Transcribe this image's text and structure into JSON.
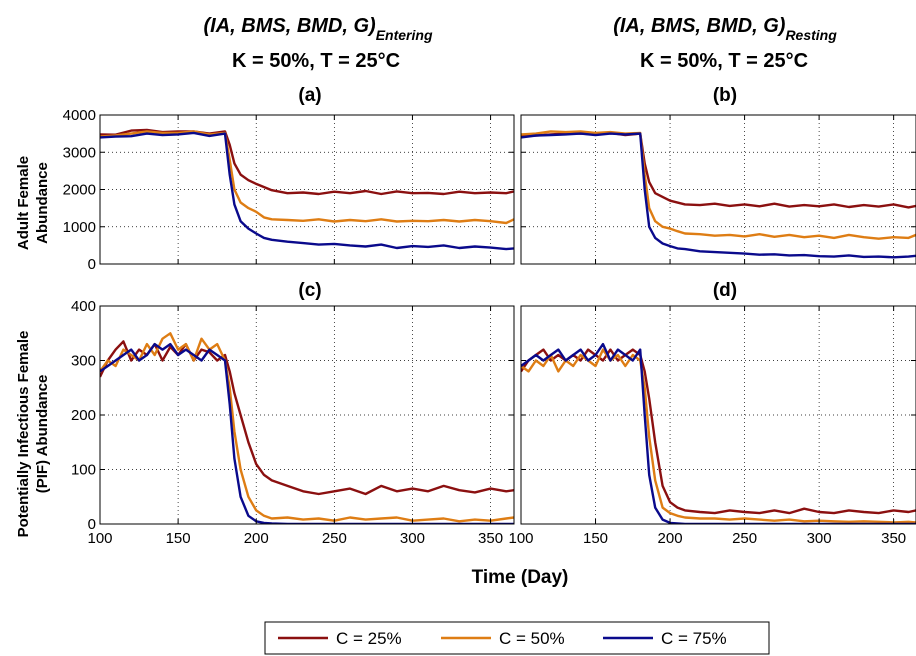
{
  "headings": {
    "left": {
      "main": "(IA, BMS, BMD, G)",
      "sub": "Entering",
      "cond": "K = 50%, T = 25°C"
    },
    "right": {
      "main": "(IA, BMS, BMD, G)",
      "sub": "Resting",
      "cond": "K = 50%, T = 25°C"
    }
  },
  "xlabel": "Time (Day)",
  "ylabel_top": [
    "Adult Female",
    "Abundance"
  ],
  "ylabel_bottom": [
    "Potentially Infectious Female",
    "(PIF) Abundance"
  ],
  "colors": {
    "C25": "#8b1010",
    "C50": "#de7d14",
    "C75": "#0a0a8c"
  },
  "legend": [
    "C = 25%",
    "C = 50%",
    "C = 75%"
  ],
  "chart_data": [
    {
      "type": "line",
      "panel_label": "(a)",
      "xlim": [
        100,
        365
      ],
      "ylim": [
        0,
        4000
      ],
      "xticks": [
        100,
        150,
        200,
        250,
        300,
        350
      ],
      "yticks": [
        0,
        1000,
        2000,
        3000,
        4000
      ],
      "grid": true,
      "series": [
        {
          "name": "C = 25%",
          "x": [
            100,
            110,
            120,
            130,
            140,
            150,
            160,
            170,
            180,
            183,
            186,
            190,
            195,
            200,
            210,
            220,
            230,
            240,
            250,
            260,
            270,
            280,
            290,
            300,
            310,
            320,
            330,
            340,
            350,
            360,
            365
          ],
          "y": [
            3480,
            3470,
            3580,
            3600,
            3540,
            3560,
            3560,
            3500,
            3560,
            3200,
            2700,
            2400,
            2250,
            2150,
            1980,
            1900,
            1920,
            1880,
            1940,
            1900,
            1960,
            1880,
            1950,
            1900,
            1910,
            1880,
            1940,
            1900,
            1920,
            1900,
            1950
          ]
        },
        {
          "name": "C = 50%",
          "x": [
            100,
            110,
            120,
            130,
            140,
            150,
            160,
            170,
            180,
            183,
            186,
            190,
            195,
            200,
            205,
            210,
            220,
            230,
            240,
            250,
            260,
            270,
            280,
            290,
            300,
            310,
            320,
            330,
            340,
            350,
            360,
            365
          ],
          "y": [
            3420,
            3450,
            3500,
            3560,
            3520,
            3520,
            3560,
            3480,
            3520,
            2800,
            2000,
            1650,
            1500,
            1400,
            1250,
            1200,
            1180,
            1160,
            1200,
            1140,
            1180,
            1150,
            1200,
            1140,
            1160,
            1150,
            1180,
            1140,
            1180,
            1150,
            1100,
            1200
          ]
        },
        {
          "name": "C = 75%",
          "x": [
            100,
            110,
            120,
            130,
            140,
            150,
            160,
            170,
            180,
            183,
            186,
            190,
            195,
            200,
            205,
            210,
            220,
            230,
            240,
            250,
            260,
            270,
            280,
            290,
            300,
            310,
            320,
            330,
            340,
            350,
            360,
            365
          ],
          "y": [
            3400,
            3420,
            3430,
            3500,
            3460,
            3480,
            3520,
            3440,
            3500,
            2400,
            1600,
            1150,
            950,
            820,
            700,
            650,
            600,
            560,
            520,
            540,
            500,
            470,
            520,
            430,
            480,
            460,
            500,
            430,
            470,
            440,
            400,
            420
          ]
        }
      ]
    },
    {
      "type": "line",
      "panel_label": "(b)",
      "xlim": [
        100,
        365
      ],
      "ylim": [
        0,
        4000
      ],
      "xticks": [
        100,
        150,
        200,
        250,
        300,
        350
      ],
      "yticks": [
        0,
        1000,
        2000,
        3000,
        4000
      ],
      "grid": true,
      "series": [
        {
          "name": "C = 25%",
          "x": [
            100,
            110,
            120,
            130,
            140,
            150,
            160,
            170,
            180,
            183,
            186,
            190,
            195,
            200,
            210,
            220,
            230,
            240,
            250,
            260,
            270,
            280,
            290,
            300,
            310,
            320,
            330,
            340,
            350,
            360,
            365
          ],
          "y": [
            3420,
            3450,
            3480,
            3500,
            3500,
            3480,
            3520,
            3460,
            3500,
            2700,
            2200,
            1900,
            1800,
            1700,
            1600,
            1580,
            1620,
            1560,
            1600,
            1550,
            1620,
            1540,
            1580,
            1550,
            1600,
            1530,
            1580,
            1540,
            1600,
            1520,
            1560
          ]
        },
        {
          "name": "C = 50%",
          "x": [
            100,
            110,
            120,
            130,
            140,
            150,
            160,
            170,
            180,
            183,
            186,
            190,
            195,
            200,
            205,
            210,
            220,
            230,
            240,
            250,
            260,
            270,
            280,
            290,
            300,
            310,
            320,
            330,
            340,
            350,
            360,
            365
          ],
          "y": [
            3480,
            3500,
            3560,
            3540,
            3560,
            3520,
            3540,
            3500,
            3520,
            2400,
            1500,
            1150,
            1000,
            950,
            880,
            820,
            800,
            760,
            780,
            740,
            800,
            730,
            780,
            720,
            760,
            700,
            780,
            720,
            680,
            720,
            700,
            780
          ]
        },
        {
          "name": "C = 75%",
          "x": [
            100,
            110,
            120,
            130,
            140,
            150,
            160,
            170,
            180,
            183,
            186,
            190,
            195,
            200,
            205,
            210,
            220,
            230,
            240,
            250,
            260,
            270,
            280,
            290,
            300,
            310,
            320,
            330,
            340,
            350,
            360,
            365
          ],
          "y": [
            3400,
            3450,
            3460,
            3480,
            3500,
            3460,
            3500,
            3480,
            3500,
            2000,
            1000,
            700,
            550,
            480,
            420,
            400,
            340,
            320,
            300,
            280,
            250,
            260,
            230,
            240,
            210,
            200,
            230,
            190,
            200,
            180,
            200,
            220
          ]
        }
      ]
    },
    {
      "type": "line",
      "panel_label": "(c)",
      "xlim": [
        100,
        365
      ],
      "ylim": [
        0,
        400
      ],
      "xticks": [
        100,
        150,
        200,
        250,
        300,
        350
      ],
      "yticks": [
        0,
        100,
        200,
        300,
        400
      ],
      "grid": true,
      "series": [
        {
          "name": "C = 25%",
          "x": [
            100,
            105,
            110,
            115,
            120,
            125,
            130,
            135,
            140,
            145,
            150,
            155,
            160,
            165,
            170,
            175,
            180,
            183,
            186,
            190,
            195,
            200,
            205,
            210,
            220,
            230,
            240,
            250,
            260,
            270,
            280,
            290,
            300,
            310,
            320,
            330,
            340,
            350,
            360,
            365
          ],
          "y": [
            270,
            300,
            320,
            335,
            300,
            320,
            310,
            330,
            300,
            325,
            310,
            330,
            300,
            320,
            315,
            300,
            310,
            280,
            240,
            200,
            150,
            110,
            90,
            80,
            70,
            60,
            55,
            60,
            65,
            55,
            70,
            60,
            65,
            60,
            70,
            62,
            58,
            65,
            60,
            62
          ]
        },
        {
          "name": "C = 50%",
          "x": [
            100,
            105,
            110,
            115,
            120,
            125,
            130,
            135,
            140,
            145,
            150,
            155,
            160,
            165,
            170,
            175,
            180,
            183,
            186,
            190,
            195,
            200,
            205,
            210,
            220,
            230,
            240,
            250,
            260,
            270,
            280,
            290,
            300,
            310,
            320,
            330,
            340,
            350,
            360,
            365
          ],
          "y": [
            280,
            300,
            290,
            320,
            310,
            300,
            330,
            310,
            340,
            350,
            320,
            330,
            300,
            340,
            320,
            330,
            300,
            250,
            170,
            100,
            50,
            25,
            15,
            10,
            12,
            8,
            10,
            6,
            12,
            8,
            10,
            12,
            6,
            8,
            10,
            5,
            8,
            6,
            10,
            12
          ]
        },
        {
          "name": "C = 75%",
          "x": [
            100,
            105,
            110,
            115,
            120,
            125,
            130,
            135,
            140,
            145,
            150,
            155,
            160,
            165,
            170,
            175,
            180,
            183,
            186,
            190,
            195,
            200,
            205,
            210,
            220,
            230,
            240,
            250,
            260,
            270,
            280,
            290,
            300,
            310,
            320,
            330,
            340,
            350,
            360,
            365
          ],
          "y": [
            280,
            290,
            300,
            310,
            320,
            300,
            310,
            330,
            320,
            330,
            310,
            320,
            310,
            300,
            320,
            310,
            300,
            220,
            120,
            50,
            15,
            5,
            2,
            1,
            0,
            0,
            0,
            0,
            0,
            0,
            0,
            0,
            0,
            0,
            0,
            0,
            0,
            0,
            0,
            0
          ]
        }
      ]
    },
    {
      "type": "line",
      "panel_label": "(d)",
      "xlim": [
        100,
        365
      ],
      "ylim": [
        0,
        400
      ],
      "xticks": [
        100,
        150,
        200,
        250,
        300,
        350
      ],
      "yticks": [
        0,
        100,
        200,
        300,
        400
      ],
      "grid": true,
      "series": [
        {
          "name": "C = 25%",
          "x": [
            100,
            105,
            110,
            115,
            120,
            125,
            130,
            135,
            140,
            145,
            150,
            155,
            160,
            165,
            170,
            175,
            180,
            183,
            186,
            190,
            195,
            200,
            205,
            210,
            220,
            230,
            240,
            250,
            260,
            270,
            280,
            290,
            300,
            310,
            320,
            330,
            340,
            350,
            360,
            365
          ],
          "y": [
            280,
            300,
            310,
            320,
            300,
            310,
            300,
            310,
            300,
            320,
            310,
            300,
            320,
            300,
            310,
            320,
            310,
            280,
            230,
            150,
            70,
            40,
            30,
            25,
            22,
            20,
            25,
            22,
            20,
            25,
            20,
            28,
            22,
            20,
            25,
            22,
            20,
            25,
            22,
            25
          ]
        },
        {
          "name": "C = 50%",
          "x": [
            100,
            105,
            110,
            115,
            120,
            125,
            130,
            135,
            140,
            145,
            150,
            155,
            160,
            165,
            170,
            175,
            180,
            183,
            186,
            190,
            195,
            200,
            205,
            210,
            220,
            230,
            240,
            250,
            260,
            270,
            280,
            290,
            300,
            310,
            320,
            330,
            340,
            350,
            360,
            365
          ],
          "y": [
            290,
            280,
            300,
            290,
            310,
            280,
            300,
            290,
            310,
            300,
            290,
            320,
            300,
            310,
            290,
            310,
            300,
            250,
            160,
            80,
            30,
            20,
            15,
            12,
            10,
            10,
            8,
            10,
            8,
            6,
            8,
            5,
            6,
            5,
            4,
            5,
            4,
            3,
            4,
            3
          ]
        },
        {
          "name": "C = 75%",
          "x": [
            100,
            105,
            110,
            115,
            120,
            125,
            130,
            135,
            140,
            145,
            150,
            155,
            160,
            165,
            170,
            175,
            180,
            183,
            186,
            190,
            195,
            200,
            205,
            210,
            220,
            230,
            240,
            250,
            260,
            270,
            280,
            290,
            300,
            310,
            320,
            330,
            340,
            350,
            360,
            365
          ],
          "y": [
            290,
            300,
            310,
            300,
            310,
            320,
            300,
            310,
            320,
            300,
            310,
            330,
            300,
            320,
            310,
            300,
            320,
            200,
            90,
            30,
            8,
            2,
            1,
            0,
            0,
            0,
            0,
            0,
            0,
            0,
            0,
            0,
            0,
            0,
            0,
            0,
            0,
            0,
            0,
            0
          ]
        }
      ]
    }
  ]
}
